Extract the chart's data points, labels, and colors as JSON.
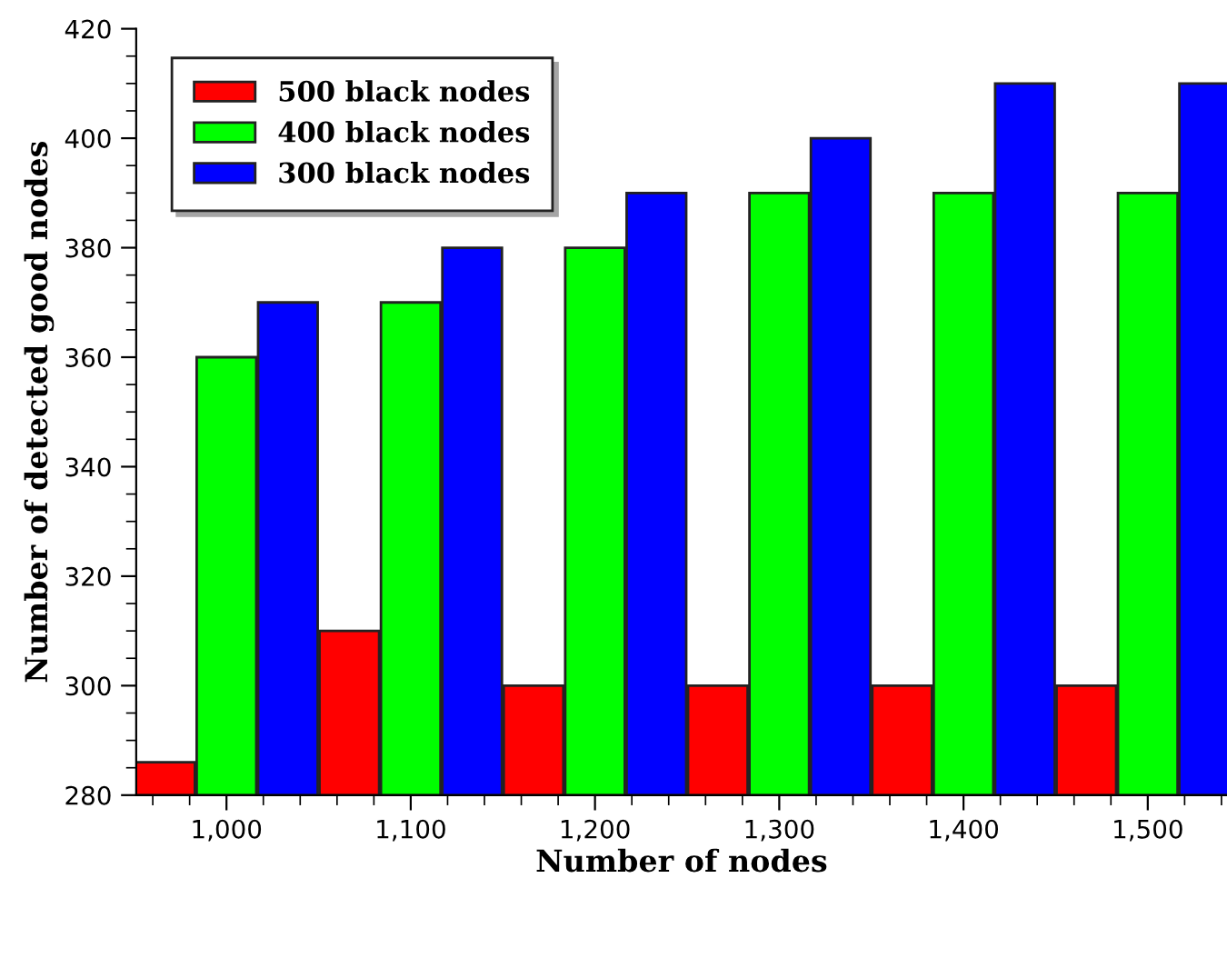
{
  "chart_data": {
    "type": "bar",
    "xlabel": "Number of nodes",
    "ylabel": "Number of detected good nodes",
    "x": [
      1000,
      1100,
      1200,
      1300,
      1400,
      1500
    ],
    "series": [
      {
        "name": "500 black nodes",
        "color": "#ff0000",
        "values": [
          286,
          310,
          300,
          300,
          300,
          300
        ]
      },
      {
        "name": "400 black nodes",
        "color": "#00ff00",
        "values": [
          360,
          370,
          380,
          390,
          390,
          390
        ]
      },
      {
        "name": "300 black nodes",
        "color": "#0000ff",
        "values": [
          370,
          380,
          390,
          400,
          410,
          410
        ]
      }
    ],
    "xlim": [
      951,
      1543
    ],
    "ylim": [
      280,
      420
    ],
    "xticks": [
      {
        "value": 1000,
        "label": "1,000"
      },
      {
        "value": 1100,
        "label": "1,100"
      },
      {
        "value": 1200,
        "label": "1,200"
      },
      {
        "value": 1300,
        "label": "1,300"
      },
      {
        "value": 1400,
        "label": "1,400"
      },
      {
        "value": 1500,
        "label": "1,500"
      }
    ],
    "yticks": [
      280,
      300,
      320,
      340,
      360,
      380,
      400,
      420
    ],
    "grid": false,
    "legend": "top left"
  }
}
